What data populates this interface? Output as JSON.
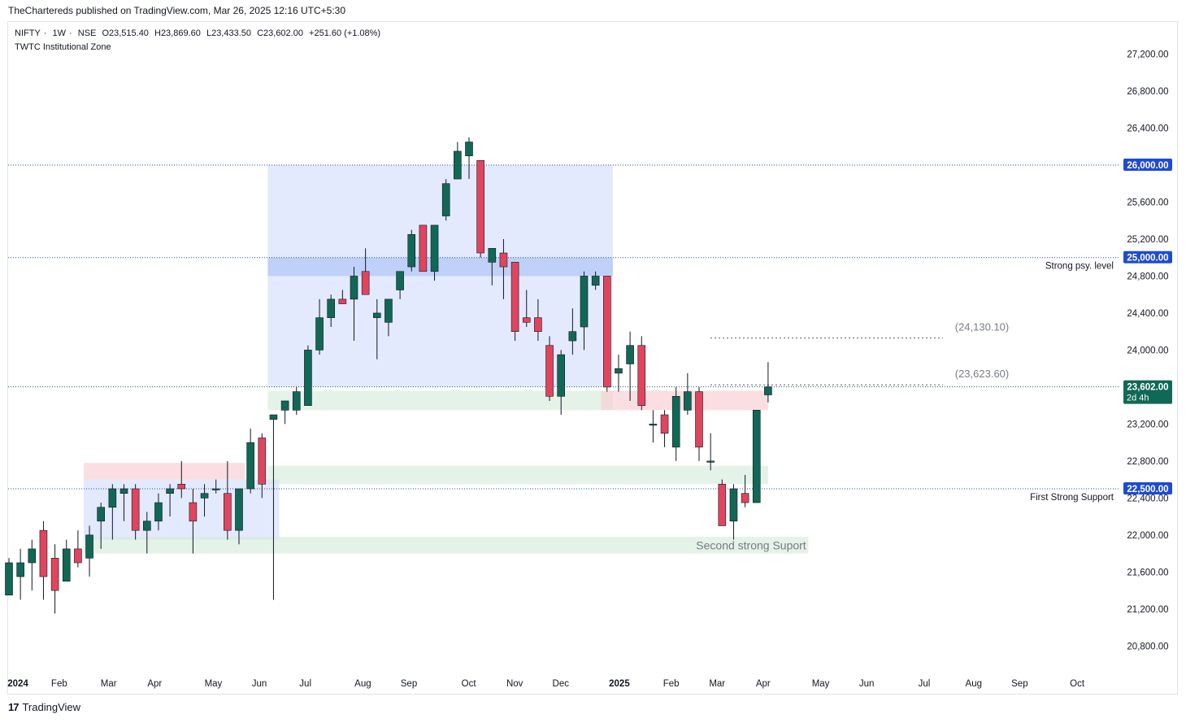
{
  "header": {
    "publisher_line": "TheChartereds published on TradingView.com, Mar 26, 2025 12:16 UTC+5:30"
  },
  "legend": {
    "symbol": "NIFTY",
    "interval": "1W",
    "exchange": "NSE",
    "open": "O23,515.40",
    "high": "H23,869.60",
    "low": "L23,433.50",
    "close": "C23,602.00",
    "change": "+251.60 (+1.08%)",
    "indicator": "TWTC Institutional Zone"
  },
  "footer": {
    "brand": "TradingView",
    "logo_icon": "tradingview-logo-icon"
  },
  "colors": {
    "bull": "#116856",
    "bear": "#e0455d",
    "wick": "#131722",
    "level_line": "#1e4bd2",
    "price_badge": "#1e4bd2",
    "last_price_badge": "#116856",
    "blue_zone": "#ccd9fb",
    "blue_band": "#a7bff5",
    "green_zone": "#d2ead8",
    "red_zone": "#f9d0d4"
  },
  "chart_data": {
    "type": "candlestick",
    "y_range": [
      20500,
      27450
    ],
    "y_ticks": [
      "27,200.00",
      "26,800.00",
      "26,400.00",
      "26,000.00",
      "25,600.00",
      "25,200.00",
      "24,800.00",
      "24,400.00",
      "24,000.00",
      "23,600.00",
      "23,200.00",
      "22,800.00",
      "22,400.00",
      "22,000.00",
      "21,600.00",
      "21,200.00",
      "20,800.00"
    ],
    "x_labels": [
      "2024",
      "Feb",
      "Mar",
      "Apr",
      "May",
      "Jun",
      "Jul",
      "Aug",
      "Sep",
      "Oct",
      "Nov",
      "Dec",
      "2025",
      "Feb",
      "Mar",
      "Apr",
      "May",
      "Jun",
      "Jul",
      "Aug",
      "Sep",
      "Oct"
    ],
    "candles": [
      {
        "o": 21350,
        "h": 21750,
        "l": 21350,
        "c": 21700
      },
      {
        "o": 21550,
        "h": 21850,
        "l": 21300,
        "c": 21700
      },
      {
        "o": 21700,
        "h": 21950,
        "l": 21400,
        "c": 21850
      },
      {
        "o": 22050,
        "h": 22150,
        "l": 21300,
        "c": 21550
      },
      {
        "o": 21750,
        "h": 21900,
        "l": 21150,
        "c": 21400
      },
      {
        "o": 21500,
        "h": 21950,
        "l": 21500,
        "c": 21850
      },
      {
        "o": 21850,
        "h": 22050,
        "l": 21650,
        "c": 21700
      },
      {
        "o": 21750,
        "h": 22100,
        "l": 21550,
        "c": 22000
      },
      {
        "o": 22150,
        "h": 22350,
        "l": 21850,
        "c": 22300
      },
      {
        "o": 22300,
        "h": 22550,
        "l": 21950,
        "c": 22500
      },
      {
        "o": 22450,
        "h": 22550,
        "l": 22150,
        "c": 22500
      },
      {
        "o": 22500,
        "h": 22550,
        "l": 21950,
        "c": 22050
      },
      {
        "o": 22050,
        "h": 22250,
        "l": 21800,
        "c": 22150
      },
      {
        "o": 22150,
        "h": 22450,
        "l": 22050,
        "c": 22350
      },
      {
        "o": 22450,
        "h": 22550,
        "l": 22200,
        "c": 22500
      },
      {
        "o": 22550,
        "h": 22800,
        "l": 22400,
        "c": 22500
      },
      {
        "o": 22350,
        "h": 22500,
        "l": 21800,
        "c": 22150
      },
      {
        "o": 22400,
        "h": 22550,
        "l": 22200,
        "c": 22450
      },
      {
        "o": 22500,
        "h": 22600,
        "l": 22450,
        "c": 22500
      },
      {
        "o": 22450,
        "h": 22800,
        "l": 21950,
        "c": 22050
      },
      {
        "o": 22050,
        "h": 22500,
        "l": 21900,
        "c": 22500
      },
      {
        "o": 22500,
        "h": 23150,
        "l": 22450,
        "c": 23000
      },
      {
        "o": 23050,
        "h": 23100,
        "l": 22400,
        "c": 22550
      },
      {
        "o": 23250,
        "h": 23300,
        "l": 21300,
        "c": 23300
      },
      {
        "o": 23350,
        "h": 23400,
        "l": 23200,
        "c": 23450
      },
      {
        "o": 23350,
        "h": 23600,
        "l": 23300,
        "c": 23550
      },
      {
        "o": 23400,
        "h": 24050,
        "l": 23400,
        "c": 24000
      },
      {
        "o": 24000,
        "h": 24550,
        "l": 23950,
        "c": 24350
      },
      {
        "o": 24350,
        "h": 24600,
        "l": 24250,
        "c": 24550
      },
      {
        "o": 24550,
        "h": 24650,
        "l": 24500,
        "c": 24500
      },
      {
        "o": 24550,
        "h": 24900,
        "l": 24100,
        "c": 24800
      },
      {
        "o": 24850,
        "h": 25100,
        "l": 24600,
        "c": 24600
      },
      {
        "o": 24350,
        "h": 24550,
        "l": 23900,
        "c": 24400
      },
      {
        "o": 24300,
        "h": 24550,
        "l": 24150,
        "c": 24550
      },
      {
        "o": 24650,
        "h": 24850,
        "l": 24550,
        "c": 24850
      },
      {
        "o": 24900,
        "h": 25300,
        "l": 24850,
        "c": 25250
      },
      {
        "o": 25350,
        "h": 25350,
        "l": 24900,
        "c": 24850
      },
      {
        "o": 24850,
        "h": 25350,
        "l": 24750,
        "c": 25350
      },
      {
        "o": 25450,
        "h": 25850,
        "l": 25400,
        "c": 25800
      },
      {
        "o": 25850,
        "h": 26250,
        "l": 25850,
        "c": 26150
      },
      {
        "o": 26100,
        "h": 26300,
        "l": 25850,
        "c": 26250
      },
      {
        "o": 26050,
        "h": 26050,
        "l": 25000,
        "c": 25050
      },
      {
        "o": 24950,
        "h": 25100,
        "l": 24700,
        "c": 25100
      },
      {
        "o": 25050,
        "h": 25200,
        "l": 24550,
        "c": 24900
      },
      {
        "o": 24950,
        "h": 24950,
        "l": 24100,
        "c": 24200
      },
      {
        "o": 24350,
        "h": 24650,
        "l": 24250,
        "c": 24300
      },
      {
        "o": 24350,
        "h": 24550,
        "l": 24100,
        "c": 24200
      },
      {
        "o": 24050,
        "h": 24150,
        "l": 23450,
        "c": 23500
      },
      {
        "o": 23500,
        "h": 24000,
        "l": 23300,
        "c": 23950
      },
      {
        "o": 24100,
        "h": 24450,
        "l": 23950,
        "c": 24200
      },
      {
        "o": 24250,
        "h": 24850,
        "l": 24000,
        "c": 24800
      },
      {
        "o": 24700,
        "h": 24850,
        "l": 24650,
        "c": 24800
      },
      {
        "o": 24800,
        "h": 24800,
        "l": 23550,
        "c": 23600
      },
      {
        "o": 23750,
        "h": 23950,
        "l": 23550,
        "c": 23800
      },
      {
        "o": 23850,
        "h": 24200,
        "l": 23450,
        "c": 24050
      },
      {
        "o": 24050,
        "h": 24150,
        "l": 23350,
        "c": 23400
      },
      {
        "o": 23200,
        "h": 23350,
        "l": 23000,
        "c": 23200
      },
      {
        "o": 23300,
        "h": 23350,
        "l": 22950,
        "c": 23100
      },
      {
        "o": 22950,
        "h": 23600,
        "l": 22800,
        "c": 23500
      },
      {
        "o": 23350,
        "h": 23750,
        "l": 23300,
        "c": 23550
      },
      {
        "o": 23550,
        "h": 23600,
        "l": 22800,
        "c": 22950
      },
      {
        "o": 22800,
        "h": 23100,
        "l": 22700,
        "c": 22800
      },
      {
        "o": 22550,
        "h": 22600,
        "l": 22100,
        "c": 22100
      },
      {
        "o": 22150,
        "h": 22550,
        "l": 21950,
        "c": 22500
      },
      {
        "o": 22450,
        "h": 22650,
        "l": 22300,
        "c": 22350
      },
      {
        "o": 22350,
        "h": 23350,
        "l": 22350,
        "c": 23350
      },
      {
        "o": 23515.4,
        "h": 23869.6,
        "l": 23433.5,
        "c": 23602
      }
    ],
    "price_badges": [
      {
        "value": 26000,
        "label": "26,000.00"
      },
      {
        "value": 25000,
        "label": "25,000.00"
      },
      {
        "value": 22500,
        "label": "22,500.00"
      }
    ],
    "last_price": {
      "value": 23602,
      "label": "23,602.00",
      "countdown": "2d 4h"
    },
    "level_notes": [
      {
        "text": "Strong psy. level",
        "value": 25000
      },
      {
        "text": "First Strong Support",
        "value": 22500
      }
    ],
    "projections": [
      {
        "label": "(24,130.10)",
        "value": 24130.1
      },
      {
        "label": "(23,623.60)",
        "value": 23623.6
      }
    ],
    "zones": [
      {
        "kind": "blue",
        "x0": 23,
        "x1": 52,
        "y0": 23600,
        "y1": 26000
      },
      {
        "kind": "blue_band",
        "x0": 23,
        "x1": 52,
        "y0": 24800,
        "y1": 25000
      },
      {
        "kind": "blue",
        "x0": 7,
        "x1": 23,
        "y0": 21950,
        "y1": 22600
      },
      {
        "kind": "red",
        "x0": 7,
        "x1": 20,
        "y0": 22600,
        "y1": 22780
      },
      {
        "kind": "green",
        "x0": 23,
        "x1": 52,
        "y0": 23350,
        "y1": 23560
      },
      {
        "kind": "red",
        "x0": 52,
        "x1": 65.5,
        "y0": 23350,
        "y1": 23560
      },
      {
        "kind": "green",
        "x0": 23,
        "x1": 65.5,
        "y0": 22550,
        "y1": 22750
      },
      {
        "kind": "green",
        "x0": 7,
        "x1": 69,
        "y0": 21800,
        "y1": 21980
      }
    ],
    "zone_labels": [
      {
        "text": "Second strong Suport",
        "value": 21890
      }
    ]
  }
}
